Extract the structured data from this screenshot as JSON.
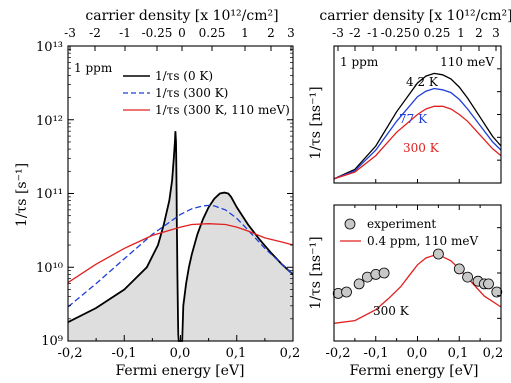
{
  "chart_data": [
    {
      "type": "line",
      "xlabel": "Fermi energy [eV]",
      "ylabel": "1/τs [s⁻¹]",
      "top_axis_label": "carrier density [x 10¹²/cm²]",
      "top_ticks": [
        "-3",
        "-2",
        "-1",
        "-0.25",
        "0",
        "0.25",
        "1",
        "2",
        "3"
      ],
      "x_ticks": [
        "-0,2",
        "-0,1",
        "0,0",
        "0,1",
        "0,2"
      ],
      "y_ticks": [
        "10⁹",
        "10¹⁰",
        "10¹¹",
        "10¹²",
        "10¹³"
      ],
      "xlim": [
        -0.2,
        0.2
      ],
      "ylim": [
        1000000000.0,
        10000000000000.0
      ],
      "yscale": "log",
      "annotation": "1 ppm",
      "legend_position": "top-right",
      "series": [
        {
          "name": "1/τs (0 K)",
          "style": "solid",
          "color": "#000000",
          "filled": true,
          "x": [
            -0.2,
            -0.15,
            -0.1,
            -0.06,
            -0.04,
            -0.03,
            -0.02,
            -0.015,
            -0.012,
            -0.01,
            -0.009,
            -0.008,
            -0.0075,
            -0.007,
            -0.0065,
            -0.006,
            -0.0055,
            -0.005,
            -0.0045,
            -0.004,
            -0.003,
            0,
            0.003,
            0.005,
            0.01,
            0.015,
            0.02,
            0.03,
            0.04,
            0.05,
            0.06,
            0.07,
            0.078,
            0.085,
            0.09,
            0.1,
            0.12,
            0.14,
            0.16,
            0.18,
            0.2
          ],
          "y": [
            1800000000.0,
            2800000000.0,
            5000000000.0,
            10000000000.0,
            20000000000.0,
            37000000000.0,
            80000000000.0,
            150000000000.0,
            300000000000.0,
            500000000000.0,
            700000000000.0,
            500000000000.0,
            250000000000.0,
            100000000000.0,
            40000000000.0,
            20000000000.0,
            8000000000.0,
            4000000000.0,
            2000000000.0,
            1200000000.0,
            1000000000.0,
            1000000000.0,
            1000000000.0,
            3000000000.0,
            6000000000.0,
            10000000000.0,
            15000000000.0,
            28000000000.0,
            45000000000.0,
            65000000000.0,
            85000000000.0,
            100000000000.0,
            103000000000.0,
            100000000000.0,
            90000000000.0,
            65000000000.0,
            38000000000.0,
            24000000000.0,
            16000000000.0,
            11000000000.0,
            8000000000.0
          ]
        },
        {
          "name": "1/τs (300 K)",
          "style": "dashed",
          "color": "#1f3fd9",
          "x": [
            -0.2,
            -0.15,
            -0.1,
            -0.05,
            0,
            0.02,
            0.04,
            0.05,
            0.06,
            0.08,
            0.1,
            0.12,
            0.15,
            0.2
          ],
          "y": [
            2900000000.0,
            6000000000.0,
            13000000000.0,
            28000000000.0,
            52000000000.0,
            62000000000.0,
            68000000000.0,
            69000000000.0,
            68000000000.0,
            60000000000.0,
            46000000000.0,
            32000000000.0,
            18000000000.0,
            8000000000.0
          ]
        },
        {
          "name": "1/τs (300 K, 110 meV)",
          "style": "solid",
          "color": "#e02020",
          "x": [
            -0.2,
            -0.15,
            -0.1,
            -0.05,
            0,
            0.02,
            0.05,
            0.08,
            0.1,
            0.12,
            0.15,
            0.18,
            0.2
          ],
          "y": [
            6200000000.0,
            11000000000.0,
            18000000000.0,
            27000000000.0,
            35000000000.0,
            38000000000.0,
            39000000000.0,
            38000000000.0,
            35000000000.0,
            31000000000.0,
            25000000000.0,
            22000000000.0,
            20000000000.0
          ]
        }
      ]
    },
    {
      "type": "line",
      "ylabel": "1/τs [ns⁻¹]",
      "top_axis_label": "carrier density [x 10¹²/cm²]",
      "top_ticks": [
        "-3",
        "-2",
        "-1",
        "-0.25",
        "0",
        "0.25",
        "1",
        "2",
        "3"
      ],
      "xlim": [
        -0.2,
        0.2
      ],
      "ylim": [
        0,
        1
      ],
      "annotations": [
        "1 ppm",
        "110 meV"
      ],
      "series": [
        {
          "name": "4.2 K",
          "color": "#000000",
          "x": [
            -0.2,
            -0.15,
            -0.1,
            -0.05,
            0,
            0.02,
            0.04,
            0.06,
            0.08,
            0.1,
            0.12,
            0.15,
            0.18,
            0.2
          ],
          "y": [
            0.03,
            0.1,
            0.27,
            0.52,
            0.73,
            0.78,
            0.8,
            0.79,
            0.76,
            0.7,
            0.62,
            0.48,
            0.34,
            0.27
          ]
        },
        {
          "name": "77 K",
          "color": "#1f3fd9",
          "x": [
            -0.2,
            -0.15,
            -0.1,
            -0.05,
            0,
            0.02,
            0.04,
            0.06,
            0.08,
            0.1,
            0.12,
            0.15,
            0.18,
            0.2
          ],
          "y": [
            0.03,
            0.09,
            0.24,
            0.45,
            0.63,
            0.67,
            0.69,
            0.68,
            0.66,
            0.61,
            0.54,
            0.42,
            0.3,
            0.24
          ]
        },
        {
          "name": "300 K",
          "color": "#e02020",
          "x": [
            -0.2,
            -0.15,
            -0.1,
            -0.05,
            0,
            0.02,
            0.04,
            0.06,
            0.08,
            0.1,
            0.12,
            0.15,
            0.18,
            0.2
          ],
          "y": [
            0.03,
            0.08,
            0.2,
            0.37,
            0.5,
            0.54,
            0.56,
            0.56,
            0.54,
            0.5,
            0.45,
            0.35,
            0.25,
            0.2
          ]
        }
      ]
    },
    {
      "type": "scatter",
      "xlabel": "Fermi energy [eV]",
      "ylabel": "1/τs [ns⁻¹]",
      "x_ticks": [
        "-0,2",
        "-0,1",
        "0,0",
        "0,1",
        "0,2"
      ],
      "xlim": [
        -0.2,
        0.2
      ],
      "ylim": [
        0,
        1
      ],
      "annotation": "300 K",
      "legend_position": "top-left",
      "series": [
        {
          "name": "experiment",
          "marker": "circle",
          "color": "#c8c8c8",
          "x": [
            -0.19,
            -0.17,
            -0.14,
            -0.12,
            -0.1,
            -0.08,
            0.05,
            0.1,
            0.12,
            0.145,
            0.16,
            0.17,
            0.19
          ],
          "y": [
            0.35,
            0.36,
            0.42,
            0.47,
            0.49,
            0.5,
            0.64,
            0.53,
            0.47,
            0.44,
            0.42,
            0.42,
            0.36
          ]
        },
        {
          "name": "0.4 ppm, 110 meV",
          "color": "#e02020",
          "x": [
            -0.2,
            -0.15,
            -0.1,
            -0.07,
            -0.04,
            -0.02,
            0,
            0.02,
            0.04,
            0.06,
            0.08,
            0.1,
            0.13,
            0.16,
            0.2
          ],
          "y": [
            0.13,
            0.15,
            0.23,
            0.31,
            0.4,
            0.48,
            0.56,
            0.61,
            0.63,
            0.62,
            0.59,
            0.53,
            0.43,
            0.33,
            0.25
          ]
        }
      ]
    }
  ]
}
